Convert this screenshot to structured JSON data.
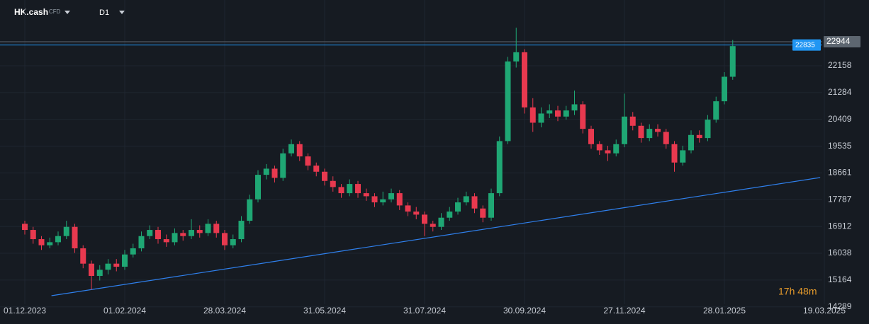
{
  "chart_data": {
    "type": "candlestick",
    "symbol": "HK.cash",
    "instrument_type": "CFD",
    "timeframe": "D1",
    "countdown": "17h 48m",
    "open": [
      17000,
      16800,
      16500,
      16300,
      16400,
      16600,
      16900,
      16200,
      15700,
      15300,
      15500,
      15700,
      15600,
      16000,
      16200,
      16600,
      16800,
      16500,
      16400,
      16700,
      16600,
      16800,
      16700,
      17000,
      16700,
      16300,
      16500,
      17100,
      17800,
      18600,
      18800,
      18500,
      19300,
      19600,
      19200,
      18900,
      18700,
      18400,
      18200,
      18000,
      18300,
      18000,
      17900,
      17700,
      17800,
      18000,
      17600,
      17400,
      17300,
      17000,
      16900,
      17200,
      17400,
      17700,
      17900,
      17500,
      17200,
      18000,
      19700,
      22300,
      22600,
      20800,
      20300,
      20600,
      20700,
      20500,
      20700,
      20900,
      20100,
      19600,
      19400,
      19300,
      19600,
      20500,
      20200,
      19800,
      20100,
      20000,
      19600,
      19000,
      19400,
      19900,
      19800,
      20400,
      21000,
      21800
    ],
    "high": [
      17100,
      16900,
      16600,
      16550,
      16750,
      17100,
      17000,
      16300,
      15800,
      15650,
      15850,
      15850,
      16150,
      16350,
      16750,
      16950,
      16900,
      16650,
      16850,
      16800,
      17150,
      16950,
      17150,
      17100,
      16800,
      16650,
      17250,
      17950,
      18750,
      18950,
      18900,
      19450,
      19750,
      19700,
      19300,
      19000,
      18800,
      18550,
      18300,
      18450,
      18400,
      18150,
      18000,
      18050,
      18150,
      18100,
      17700,
      17550,
      17400,
      17100,
      17350,
      17550,
      17850,
      18050,
      18000,
      17600,
      18150,
      19850,
      22450,
      23400,
      22700,
      21100,
      20800,
      20900,
      20850,
      20850,
      21350,
      21000,
      20200,
      19700,
      19550,
      19750,
      21250,
      20650,
      20300,
      20250,
      20250,
      20100,
      19700,
      19550,
      20050,
      20050,
      20550,
      21150,
      21950,
      23000
    ],
    "low": [
      16650,
      16350,
      16150,
      16200,
      16300,
      16500,
      16050,
      15550,
      14850,
      15150,
      15350,
      15450,
      15500,
      15900,
      16100,
      16500,
      16350,
      16250,
      16300,
      16450,
      16500,
      16550,
      16600,
      16550,
      16150,
      16200,
      16400,
      17000,
      17700,
      18450,
      18350,
      18400,
      19200,
      19050,
      18750,
      18550,
      18250,
      18050,
      17850,
      17900,
      17850,
      17750,
      17550,
      17600,
      17700,
      17450,
      17250,
      17150,
      16600,
      16750,
      16800,
      17100,
      17300,
      17600,
      17350,
      17050,
      17100,
      17900,
      19600,
      22100,
      20600,
      20000,
      20150,
      20450,
      20350,
      20400,
      20550,
      19950,
      19450,
      19250,
      19050,
      19200,
      19500,
      20050,
      19650,
      19700,
      19850,
      19450,
      18700,
      18900,
      19300,
      19650,
      19700,
      20300,
      20900,
      21700
    ],
    "close": [
      16800,
      16500,
      16300,
      16400,
      16600,
      16900,
      16200,
      15700,
      15300,
      15500,
      15700,
      15600,
      16000,
      16200,
      16600,
      16800,
      16500,
      16400,
      16700,
      16600,
      16800,
      16700,
      17000,
      16700,
      16300,
      16500,
      17100,
      17800,
      18600,
      18800,
      18500,
      19300,
      19600,
      19200,
      18900,
      18700,
      18400,
      18200,
      18000,
      18300,
      18000,
      17900,
      17700,
      17800,
      18000,
      17600,
      17400,
      17300,
      17000,
      16900,
      17200,
      17400,
      17700,
      17900,
      17500,
      17200,
      18000,
      19700,
      22300,
      22600,
      20800,
      20300,
      20600,
      20700,
      20500,
      20700,
      20900,
      20100,
      19600,
      19400,
      19300,
      19600,
      20500,
      20200,
      19800,
      20100,
      20000,
      19600,
      19000,
      19400,
      19900,
      19800,
      20400,
      21000,
      21800,
      22800
    ],
    "up_color": "#1fa774",
    "down_color": "#e8394f",
    "xticks": [
      {
        "value": 0,
        "label": "01.12.2023"
      },
      {
        "value": 12,
        "label": "01.02.2024"
      },
      {
        "value": 24,
        "label": "28.03.2024"
      },
      {
        "value": 36,
        "label": "31.05.2024"
      },
      {
        "value": 48,
        "label": "31.07.2024"
      },
      {
        "value": 60,
        "label": "30.09.2024"
      },
      {
        "value": 72,
        "label": "27.11.2024"
      },
      {
        "value": 84,
        "label": "28.01.2025"
      },
      {
        "value": 96,
        "label": "19.03.2025"
      }
    ],
    "ylim": [
      13915,
      24305
    ],
    "yticks": [
      22158,
      21284,
      20409,
      19535,
      18661,
      17787,
      16912,
      16038,
      15164,
      14289
    ],
    "grid": true,
    "price_levels": [
      {
        "value": 22944,
        "color": "#5d6670"
      },
      {
        "value": 22835,
        "color": "#2196f3"
      }
    ],
    "trendline": {
      "x": [
        3.2,
        95.5
      ],
      "values": [
        14654,
        18510
      ],
      "color": "#2f80ed"
    }
  }
}
